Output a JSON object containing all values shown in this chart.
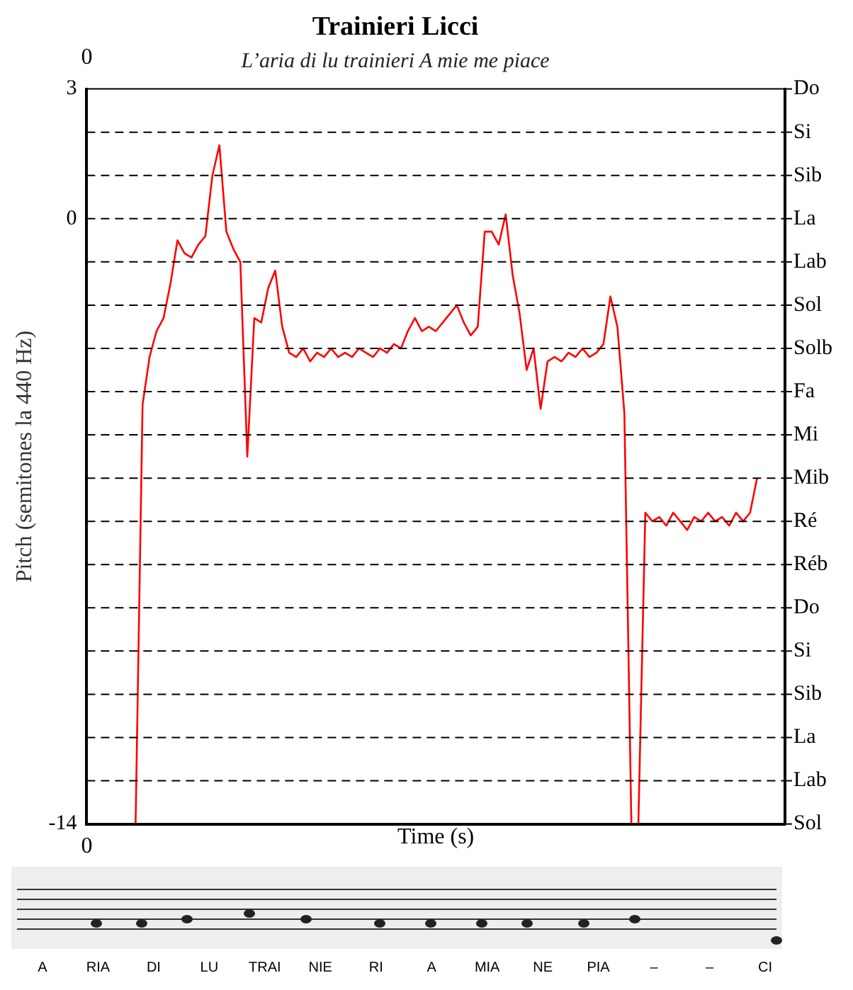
{
  "chart_data": {
    "type": "line",
    "title": "Trainieri Licci",
    "subtitle": "L’aria di lu trainieri A mie me piace",
    "xlabel": "Time (s)",
    "ylabel": "Pitch (semitones la 440 Hz)",
    "categories": [
      null,
      null,
      null,
      null,
      null,
      null,
      null,
      null,
      null,
      null,
      null,
      null,
      null,
      null,
      null,
      null,
      null,
      null,
      null,
      null,
      null,
      null,
      null,
      null,
      null,
      null,
      null,
      null,
      null,
      null,
      null,
      null,
      null,
      null,
      null,
      null,
      null,
      null,
      null,
      null,
      null,
      null,
      null,
      null,
      null,
      null,
      null,
      null,
      null,
      null,
      null,
      null,
      null,
      null,
      null,
      null,
      null,
      null,
      null,
      null,
      null,
      null,
      null,
      null,
      null,
      null,
      null,
      null,
      null,
      null,
      null,
      null,
      null,
      null,
      null,
      null,
      null,
      null,
      null,
      null,
      null,
      null,
      null,
      null,
      null,
      null,
      null,
      null,
      null,
      null,
      null,
      null,
      null,
      null,
      null,
      null,
      null,
      null,
      null,
      null,
      null
    ],
    "series": [
      {
        "color": "#ff0000",
        "values": [
          null,
          null,
          null,
          null,
          null,
          null,
          null,
          -14,
          -4.3,
          -3.2,
          -2.6,
          -2.3,
          -1.5,
          -0.5,
          -0.8,
          -0.9,
          -0.6,
          -0.4,
          1.0,
          1.7,
          -0.3,
          -0.7,
          -1.0,
          -5.5,
          -2.3,
          -2.4,
          -1.6,
          -1.2,
          -2.5,
          -3.1,
          -3.2,
          -3.0,
          -3.3,
          -3.1,
          -3.2,
          -3.0,
          -3.2,
          -3.1,
          -3.2,
          -3.0,
          -3.1,
          -3.2,
          -3.0,
          -3.1,
          -2.9,
          -3.0,
          -2.6,
          -2.3,
          -2.6,
          -2.5,
          -2.6,
          -2.4,
          -2.2,
          -2.0,
          -2.4,
          -2.7,
          -2.5,
          -0.3,
          -0.3,
          -0.6,
          0.1,
          -1.3,
          -2.2,
          -3.5,
          -3.0,
          -4.4,
          -3.3,
          -3.2,
          -3.3,
          -3.1,
          -3.2,
          -3.0,
          -3.2,
          -3.1,
          -2.9,
          -1.8,
          -2.5,
          -4.5,
          -14,
          -14,
          -6.8,
          -7.0,
          -6.9,
          -7.1,
          -6.8,
          -7.0,
          -7.2,
          -6.9,
          -7.0,
          -6.8,
          -7.0,
          -6.9,
          -7.1,
          -6.8,
          -7.0,
          -6.8,
          -6.0,
          null,
          null,
          null,
          null
        ]
      }
    ],
    "ylim": [
      -14,
      3
    ],
    "yticks": [
      3,
      0,
      -14
    ],
    "ref_lines": [
      {
        "axis": "y",
        "value": 3,
        "label": "Do",
        "line_style": "solid"
      },
      {
        "axis": "y",
        "value": 2,
        "label": "Si",
        "line_style": "dashed"
      },
      {
        "axis": "y",
        "value": 1,
        "label": "Sib",
        "line_style": "dashed"
      },
      {
        "axis": "y",
        "value": 0,
        "label": "La",
        "line_style": "dashed"
      },
      {
        "axis": "y",
        "value": -1,
        "label": "Lab",
        "line_style": "dashed"
      },
      {
        "axis": "y",
        "value": -2,
        "label": "Sol",
        "line_style": "dashed"
      },
      {
        "axis": "y",
        "value": -3,
        "label": "Solb",
        "line_style": "dashed"
      },
      {
        "axis": "y",
        "value": -4,
        "label": "Fa",
        "line_style": "dashed"
      },
      {
        "axis": "y",
        "value": -5,
        "label": "Mi",
        "line_style": "dashed"
      },
      {
        "axis": "y",
        "value": -6,
        "label": "Mib",
        "line_style": "dashed"
      },
      {
        "axis": "y",
        "value": -7,
        "label": "Ré",
        "line_style": "dashed"
      },
      {
        "axis": "y",
        "value": -8,
        "label": "Réb",
        "line_style": "dashed"
      },
      {
        "axis": "y",
        "value": -9,
        "label": "Do",
        "line_style": "dashed"
      },
      {
        "axis": "y",
        "value": -10,
        "label": "Si",
        "line_style": "dashed"
      },
      {
        "axis": "y",
        "value": -11,
        "label": "Sib",
        "line_style": "dashed"
      },
      {
        "axis": "y",
        "value": -12,
        "label": "La",
        "line_style": "dashed"
      },
      {
        "axis": "y",
        "value": -13,
        "label": "Lab",
        "line_style": "dashed"
      },
      {
        "axis": "y",
        "value": -14,
        "label": "Sol",
        "line_style": "solid"
      }
    ],
    "marker": "none",
    "line_style": "solid",
    "legend": false,
    "annotations": [
      "0",
      "0",
      "A",
      "RIA",
      "DI",
      "LU",
      "TRAI",
      "NIE",
      "RI",
      "A",
      "MIA",
      "NE",
      "PIA",
      "–",
      "–",
      "CI"
    ]
  }
}
